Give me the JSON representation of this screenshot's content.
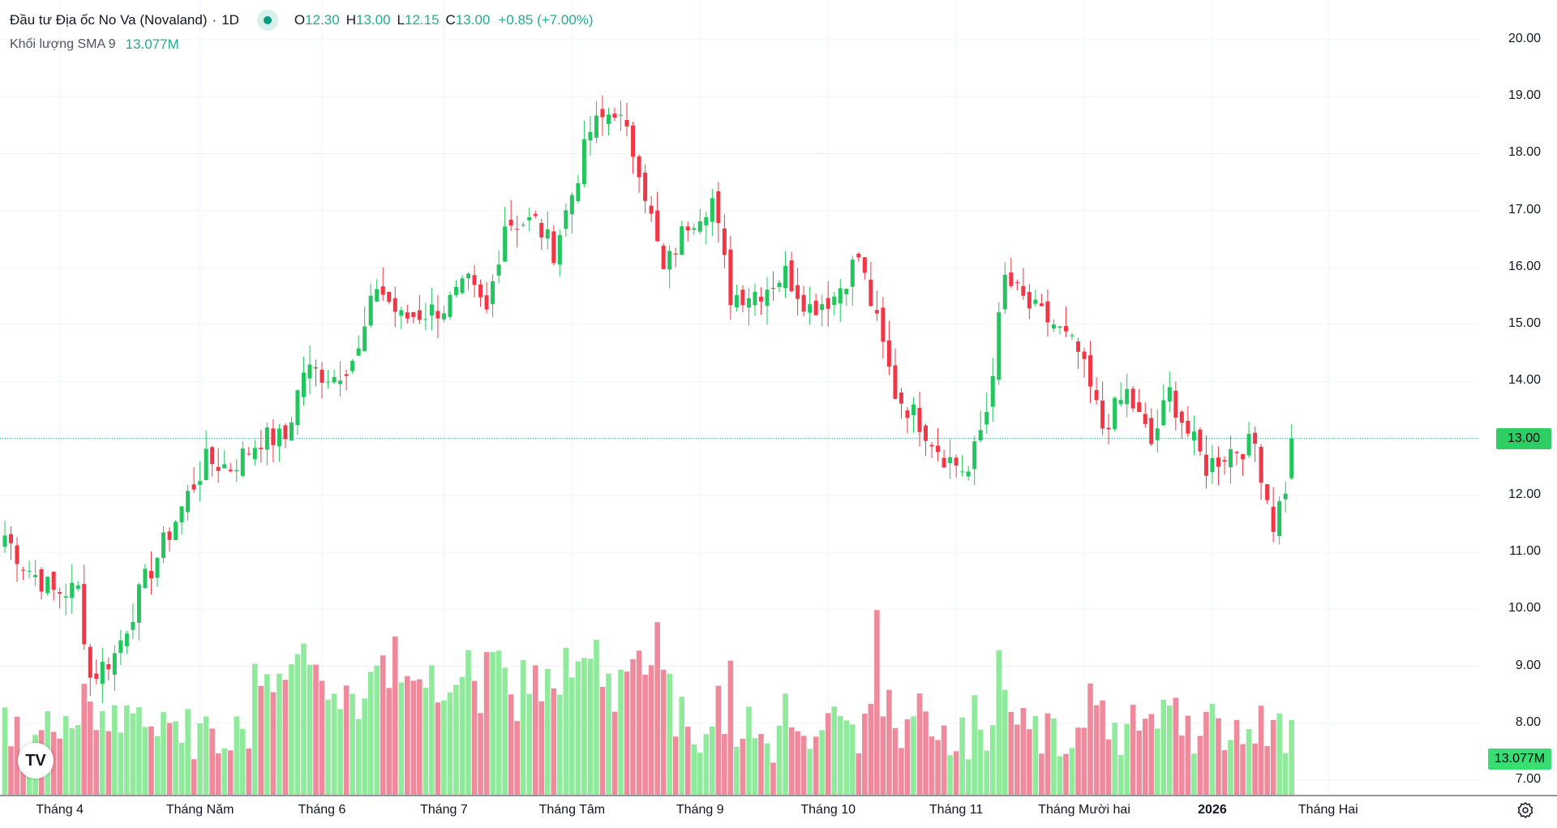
{
  "legend": {
    "title": "Đầu tư Địa ốc No Va (Novaland)",
    "interval": "1D",
    "o_label": "O",
    "o_value": "12.30",
    "h_label": "H",
    "h_value": "13.00",
    "l_label": "L",
    "l_value": "12.15",
    "c_label": "C",
    "c_value": "13.00",
    "change": "+0.85 (+7.00%)",
    "volume_label": "Khối lượng SMA 9",
    "volume_value": "13.077M"
  },
  "price_tag": "13.00",
  "volume_tag": "13.077M",
  "logo": "TV",
  "colors": {
    "up": "#089981",
    "up_bar": "#22ab94",
    "down": "#f23645",
    "vol_up": "#90ea9c",
    "vol_down": "#ef8a9c",
    "grid": "#f0f3fa"
  },
  "chart_data": {
    "type": "candlestick",
    "title": "Đầu tư Địa ốc No Va (Novaland) · 1D",
    "ylim": [
      6.8,
      20.3
    ],
    "y_ticks": [
      "20.00",
      "19.00",
      "18.00",
      "17.00",
      "16.00",
      "15.00",
      "14.00",
      "13.00",
      "12.00",
      "11.00",
      "10.00",
      "9.00",
      "8.00",
      "7.00"
    ],
    "x_ticks": [
      "Tháng 4",
      "Tháng Năm",
      "Tháng 6",
      "Tháng 7",
      "Tháng Tâm",
      "Tháng 9",
      "Tháng 10",
      "Tháng 11",
      "Tháng Mười hai",
      "2026",
      "Tháng Hai"
    ],
    "x_tick_positions": [
      9,
      32,
      52,
      72,
      93,
      114,
      135,
      156,
      177,
      198,
      217
    ],
    "num_bars": 235,
    "last_close": 13.0,
    "volume_sma9": "13.077M",
    "anchor_closes": [
      [
        0,
        11.3
      ],
      [
        3,
        10.8
      ],
      [
        8,
        10.3
      ],
      [
        12,
        10.35
      ],
      [
        14,
        8.8
      ],
      [
        18,
        9.2
      ],
      [
        23,
        10.5
      ],
      [
        30,
        12.0
      ],
      [
        33,
        12.6
      ],
      [
        37,
        12.5
      ],
      [
        42,
        13.0
      ],
      [
        46,
        13.0
      ],
      [
        49,
        14.2
      ],
      [
        54,
        14.1
      ],
      [
        58,
        14.5
      ],
      [
        61,
        15.7
      ],
      [
        65,
        15.1
      ],
      [
        72,
        15.3
      ],
      [
        76,
        15.7
      ],
      [
        79,
        15.2
      ],
      [
        82,
        16.8
      ],
      [
        87,
        16.8
      ],
      [
        90,
        16.3
      ],
      [
        93,
        17.3
      ],
      [
        96,
        18.4
      ],
      [
        100,
        18.8
      ],
      [
        104,
        17.8
      ],
      [
        108,
        15.9
      ],
      [
        112,
        16.8
      ],
      [
        116,
        17.2
      ],
      [
        119,
        15.5
      ],
      [
        124,
        15.6
      ],
      [
        128,
        15.9
      ],
      [
        132,
        15.3
      ],
      [
        136,
        15.5
      ],
      [
        140,
        16.2
      ],
      [
        143,
        15.0
      ],
      [
        146,
        13.8
      ],
      [
        150,
        13.3
      ],
      [
        154,
        12.7
      ],
      [
        158,
        12.4
      ],
      [
        161,
        13.5
      ],
      [
        164,
        15.8
      ],
      [
        168,
        15.3
      ],
      [
        172,
        15.0
      ],
      [
        176,
        14.5
      ],
      [
        180,
        13.2
      ],
      [
        184,
        13.8
      ],
      [
        188,
        12.9
      ],
      [
        191,
        13.8
      ],
      [
        194,
        13.1
      ],
      [
        197,
        12.5
      ],
      [
        201,
        12.8
      ],
      [
        205,
        12.9
      ],
      [
        208,
        11.5
      ],
      [
        210,
        12.15
      ],
      [
        211,
        13.0
      ]
    ],
    "volume_range_M": [
      0,
      39
    ]
  }
}
